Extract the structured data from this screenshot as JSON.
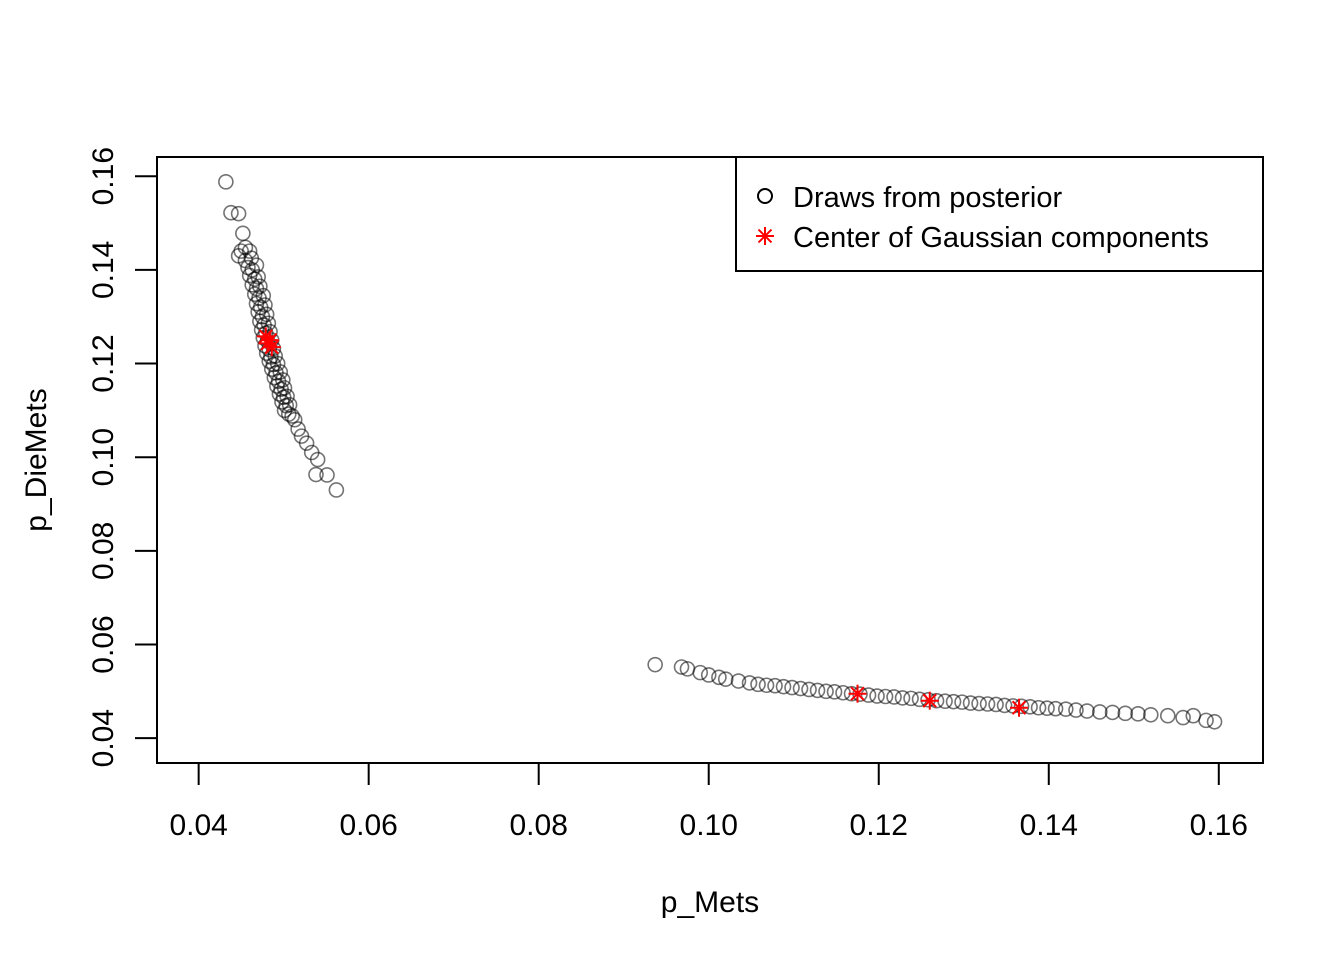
{
  "chart_data": {
    "type": "scatter",
    "title": "",
    "xlabel": "p_Mets",
    "ylabel": "p_DieMets",
    "xlim": [
      0.0351,
      0.1652
    ],
    "ylim": [
      0.0347,
      0.1641
    ],
    "x_ticks": [
      0.04,
      0.06,
      0.08,
      0.1,
      0.12,
      0.14,
      0.16
    ],
    "x_tick_labels": [
      "0.04",
      "0.06",
      "0.08",
      "0.10",
      "0.12",
      "0.14",
      "0.16"
    ],
    "y_ticks": [
      0.04,
      0.06,
      0.08,
      0.1,
      0.12,
      0.14,
      0.16
    ],
    "y_tick_labels": [
      "0.04",
      "0.06",
      "0.08",
      "0.10",
      "0.12",
      "0.14",
      "0.16"
    ],
    "grid": false,
    "legend_position": "top-right",
    "legend": [
      {
        "label": "Draws from posterior",
        "marker": "open-circle",
        "color": "#000000"
      },
      {
        "label": "Center of Gaussian components",
        "marker": "asterisk",
        "color": "#ff0000"
      }
    ],
    "series": [
      {
        "name": "Draws from posterior",
        "marker": "open-circle",
        "color": "#000000",
        "semi_transparent": true,
        "points": [
          [
            0.0432,
            0.1588
          ],
          [
            0.0438,
            0.1522
          ],
          [
            0.0447,
            0.152
          ],
          [
            0.0452,
            0.1478
          ],
          [
            0.045,
            0.144
          ],
          [
            0.0447,
            0.143
          ],
          [
            0.0455,
            0.1448
          ],
          [
            0.046,
            0.144
          ],
          [
            0.0455,
            0.142
          ],
          [
            0.0462,
            0.1425
          ],
          [
            0.0458,
            0.1405
          ],
          [
            0.0463,
            0.14
          ],
          [
            0.0468,
            0.141
          ],
          [
            0.046,
            0.1388
          ],
          [
            0.0466,
            0.138
          ],
          [
            0.047,
            0.1385
          ],
          [
            0.0463,
            0.1368
          ],
          [
            0.0468,
            0.136
          ],
          [
            0.0472,
            0.1365
          ],
          [
            0.0466,
            0.1348
          ],
          [
            0.0471,
            0.134
          ],
          [
            0.0476,
            0.1345
          ],
          [
            0.0468,
            0.1328
          ],
          [
            0.0473,
            0.132
          ],
          [
            0.0478,
            0.1325
          ],
          [
            0.047,
            0.131
          ],
          [
            0.0475,
            0.13
          ],
          [
            0.048,
            0.1305
          ],
          [
            0.0472,
            0.129
          ],
          [
            0.0477,
            0.1282
          ],
          [
            0.0482,
            0.1286
          ],
          [
            0.0474,
            0.1272
          ],
          [
            0.0479,
            0.1265
          ],
          [
            0.0484,
            0.1268
          ],
          [
            0.0476,
            0.1255
          ],
          [
            0.0481,
            0.1248
          ],
          [
            0.0486,
            0.125
          ],
          [
            0.0478,
            0.1238
          ],
          [
            0.0483,
            0.123
          ],
          [
            0.0488,
            0.1232
          ],
          [
            0.048,
            0.1222
          ],
          [
            0.0485,
            0.1214
          ],
          [
            0.049,
            0.1216
          ],
          [
            0.0483,
            0.1205
          ],
          [
            0.0488,
            0.1198
          ],
          [
            0.0493,
            0.12
          ],
          [
            0.0486,
            0.1188
          ],
          [
            0.0491,
            0.118
          ],
          [
            0.0496,
            0.1182
          ],
          [
            0.0489,
            0.117
          ],
          [
            0.0494,
            0.1162
          ],
          [
            0.0499,
            0.1165
          ],
          [
            0.0492,
            0.1152
          ],
          [
            0.0497,
            0.1145
          ],
          [
            0.0501,
            0.1148
          ],
          [
            0.0495,
            0.1135
          ],
          [
            0.05,
            0.1128
          ],
          [
            0.0504,
            0.113
          ],
          [
            0.0498,
            0.1118
          ],
          [
            0.0503,
            0.111
          ],
          [
            0.0507,
            0.1112
          ],
          [
            0.0501,
            0.11
          ],
          [
            0.0506,
            0.1092
          ],
          [
            0.051,
            0.1088
          ],
          [
            0.0513,
            0.108
          ],
          [
            0.0517,
            0.106
          ],
          [
            0.0521,
            0.1045
          ],
          [
            0.0527,
            0.103
          ],
          [
            0.0533,
            0.101
          ],
          [
            0.054,
            0.0995
          ],
          [
            0.0538,
            0.0963
          ],
          [
            0.0551,
            0.0962
          ],
          [
            0.0562,
            0.093
          ],
          [
            0.0937,
            0.0557
          ],
          [
            0.0968,
            0.0552
          ],
          [
            0.0975,
            0.0548
          ],
          [
            0.099,
            0.054
          ],
          [
            0.1,
            0.0535
          ],
          [
            0.1012,
            0.053
          ],
          [
            0.102,
            0.0526
          ],
          [
            0.1035,
            0.0522
          ],
          [
            0.1048,
            0.0518
          ],
          [
            0.1058,
            0.0515
          ],
          [
            0.1068,
            0.0513
          ],
          [
            0.1078,
            0.0512
          ],
          [
            0.1088,
            0.051
          ],
          [
            0.1098,
            0.0508
          ],
          [
            0.1108,
            0.0506
          ],
          [
            0.1118,
            0.0504
          ],
          [
            0.1128,
            0.0502
          ],
          [
            0.1138,
            0.05
          ],
          [
            0.1148,
            0.0499
          ],
          [
            0.1158,
            0.0497
          ],
          [
            0.1168,
            0.0495
          ],
          [
            0.1178,
            0.0494
          ],
          [
            0.1188,
            0.0492
          ],
          [
            0.1198,
            0.049
          ],
          [
            0.1208,
            0.0489
          ],
          [
            0.1218,
            0.0488
          ],
          [
            0.1228,
            0.0486
          ],
          [
            0.1238,
            0.0485
          ],
          [
            0.1248,
            0.0483
          ],
          [
            0.1258,
            0.0482
          ],
          [
            0.1268,
            0.048
          ],
          [
            0.1278,
            0.0479
          ],
          [
            0.1288,
            0.0478
          ],
          [
            0.1298,
            0.0477
          ],
          [
            0.1308,
            0.0475
          ],
          [
            0.1318,
            0.0474
          ],
          [
            0.1328,
            0.0473
          ],
          [
            0.1338,
            0.0472
          ],
          [
            0.1348,
            0.047
          ],
          [
            0.1358,
            0.0469
          ],
          [
            0.1368,
            0.0468
          ],
          [
            0.1378,
            0.0467
          ],
          [
            0.1388,
            0.0465
          ],
          [
            0.1398,
            0.0464
          ],
          [
            0.1408,
            0.0463
          ],
          [
            0.142,
            0.0462
          ],
          [
            0.1432,
            0.046
          ],
          [
            0.1445,
            0.0458
          ],
          [
            0.146,
            0.0456
          ],
          [
            0.1475,
            0.0455
          ],
          [
            0.149,
            0.0453
          ],
          [
            0.1505,
            0.0452
          ],
          [
            0.152,
            0.045
          ],
          [
            0.154,
            0.0448
          ],
          [
            0.1558,
            0.0444
          ],
          [
            0.157,
            0.0448
          ],
          [
            0.1585,
            0.0438
          ],
          [
            0.1595,
            0.0435
          ]
        ]
      },
      {
        "name": "Center of Gaussian components",
        "marker": "asterisk",
        "color": "#ff0000",
        "points": [
          [
            0.0479,
            0.1258
          ],
          [
            0.0484,
            0.125
          ],
          [
            0.0481,
            0.1243
          ],
          [
            0.0486,
            0.1235
          ],
          [
            0.1175,
            0.0495
          ],
          [
            0.126,
            0.048
          ],
          [
            0.1365,
            0.0465
          ]
        ]
      }
    ]
  }
}
